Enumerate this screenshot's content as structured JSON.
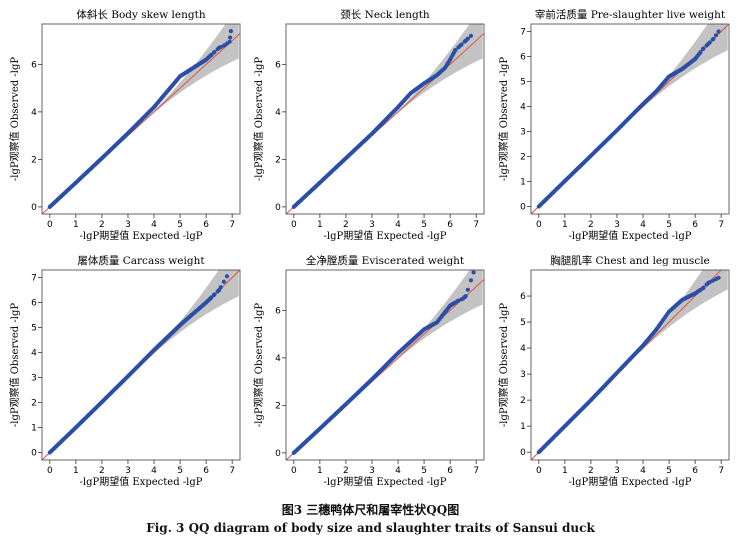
{
  "caption_cn": "图3   三穗鸭体尺和屠宰性状QQ图",
  "caption_en": "Fig. 3    QQ diagram of body size and slaughter traits of Sansui duck",
  "colors": {
    "points": "#2b4fa8",
    "reference_line": "#e0533f",
    "band": "#bdbdbd",
    "frame": "#555555"
  },
  "chart_data": [
    {
      "type": "scatter",
      "title": "体斜长  Body skew length",
      "xlabel": "-lgP期望值  Expected -lgP",
      "ylabel": "-lgP观察值  Observed -lgP",
      "xlim": [
        -0.3,
        7.3
      ],
      "ylim": [
        -0.3,
        7.7
      ],
      "xticks": [
        0,
        1,
        2,
        3,
        4,
        5,
        6,
        7
      ],
      "yticks": [
        0,
        2,
        4,
        6
      ],
      "points": [
        [
          0,
          0
        ],
        [
          1,
          1.02
        ],
        [
          2,
          2.05
        ],
        [
          3,
          3.1
        ],
        [
          4,
          4.2
        ],
        [
          4.5,
          4.85
        ],
        [
          5,
          5.5
        ],
        [
          5.5,
          5.85
        ],
        [
          6,
          6.2
        ],
        [
          6.3,
          6.5
        ],
        [
          6.5,
          6.7
        ],
        [
          6.7,
          6.8
        ],
        [
          6.9,
          6.95
        ],
        [
          6.95,
          7.4
        ]
      ]
    },
    {
      "type": "scatter",
      "title": "颈长  Neck length",
      "xlabel": "-lgP期望值  Expected -lgP",
      "ylabel": "-lgP观察值  Observed -lgP",
      "xlim": [
        -0.3,
        7.3
      ],
      "ylim": [
        -0.3,
        7.7
      ],
      "xticks": [
        0,
        1,
        2,
        3,
        4,
        5,
        6,
        7
      ],
      "yticks": [
        0,
        2,
        4,
        6
      ],
      "points": [
        [
          0,
          0
        ],
        [
          1,
          1.02
        ],
        [
          2,
          2.05
        ],
        [
          3,
          3.08
        ],
        [
          4,
          4.2
        ],
        [
          4.5,
          4.8
        ],
        [
          5,
          5.2
        ],
        [
          5.5,
          5.55
        ],
        [
          5.8,
          5.85
        ],
        [
          6,
          6.2
        ],
        [
          6.2,
          6.6
        ],
        [
          6.4,
          6.8
        ],
        [
          6.6,
          7.0
        ],
        [
          6.8,
          7.2
        ]
      ]
    },
    {
      "type": "scatter",
      "title": "宰前活质量  Pre-slaughter live weight",
      "xlabel": "-lgP期望值  Expected -lgP",
      "ylabel": "-lgP观察值  Observed -lgP",
      "xlim": [
        -0.3,
        7.3
      ],
      "ylim": [
        -0.3,
        7.3
      ],
      "xticks": [
        0,
        1,
        2,
        3,
        4,
        5,
        6,
        7
      ],
      "yticks": [
        0,
        1,
        2,
        3,
        4,
        5,
        6,
        7
      ],
      "points": [
        [
          0,
          0
        ],
        [
          1,
          1.02
        ],
        [
          2,
          2.03
        ],
        [
          3,
          3.05
        ],
        [
          4,
          4.1
        ],
        [
          4.5,
          4.6
        ],
        [
          5,
          5.2
        ],
        [
          5.5,
          5.5
        ],
        [
          6,
          5.9
        ],
        [
          6.3,
          6.3
        ],
        [
          6.5,
          6.5
        ],
        [
          6.7,
          6.7
        ],
        [
          6.9,
          7.0
        ]
      ]
    },
    {
      "type": "scatter",
      "title": "屠体质量  Carcass weight",
      "xlabel": "-lgP期望值  Expected -lgP",
      "ylabel": "-lgP观察值  Observed -lgP",
      "xlim": [
        -0.3,
        7.3
      ],
      "ylim": [
        -0.3,
        7.3
      ],
      "xticks": [
        0,
        1,
        2,
        3,
        4,
        5,
        6,
        7
      ],
      "yticks": [
        0,
        1,
        2,
        3,
        4,
        5,
        6,
        7
      ],
      "points": [
        [
          0,
          0
        ],
        [
          1,
          1.0
        ],
        [
          2,
          2.02
        ],
        [
          3,
          3.05
        ],
        [
          4,
          4.1
        ],
        [
          4.5,
          4.6
        ],
        [
          5,
          5.1
        ],
        [
          5.5,
          5.55
        ],
        [
          6,
          6.0
        ],
        [
          6.3,
          6.3
        ],
        [
          6.5,
          6.5
        ],
        [
          6.8,
          7.05
        ]
      ]
    },
    {
      "type": "scatter",
      "title": "全净膛质量  Eviscerated weight",
      "xlabel": "-lgP期望值  Expected -lgP",
      "ylabel": "-lgP观察值  Observed -lgP",
      "xlim": [
        -0.3,
        7.3
      ],
      "ylim": [
        -0.3,
        7.7
      ],
      "xticks": [
        0,
        1,
        2,
        3,
        4,
        5,
        6,
        7
      ],
      "yticks": [
        0,
        2,
        4,
        6
      ],
      "points": [
        [
          0,
          0
        ],
        [
          1,
          1.02
        ],
        [
          2,
          2.05
        ],
        [
          3,
          3.1
        ],
        [
          4,
          4.2
        ],
        [
          4.5,
          4.7
        ],
        [
          5,
          5.2
        ],
        [
          5.5,
          5.5
        ],
        [
          6,
          6.2
        ],
        [
          6.3,
          6.4
        ],
        [
          6.5,
          6.5
        ],
        [
          6.6,
          6.6
        ],
        [
          6.9,
          7.6
        ]
      ]
    },
    {
      "type": "scatter",
      "title": "胸腿肌率  Chest and leg muscle",
      "xlabel": "-lgP期望值  Expected -lgP",
      "ylabel": "-lgP观察值  Observed -lgP",
      "xlim": [
        -0.3,
        7.3
      ],
      "ylim": [
        -0.3,
        7.0
      ],
      "xticks": [
        0,
        1,
        2,
        3,
        4,
        5,
        6,
        7
      ],
      "yticks": [
        0,
        1,
        2,
        3,
        4,
        5,
        6
      ],
      "points": [
        [
          0,
          0
        ],
        [
          1,
          1.0
        ],
        [
          2,
          2.0
        ],
        [
          3,
          3.05
        ],
        [
          4,
          4.1
        ],
        [
          4.5,
          4.7
        ],
        [
          5,
          5.4
        ],
        [
          5.5,
          5.85
        ],
        [
          6,
          6.1
        ],
        [
          6.3,
          6.3
        ],
        [
          6.5,
          6.5
        ],
        [
          6.9,
          6.7
        ]
      ]
    }
  ]
}
